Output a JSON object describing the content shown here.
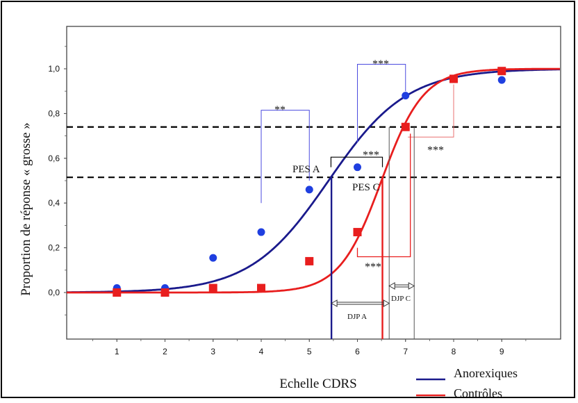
{
  "chart_data": {
    "type": "scatter",
    "xlabel": "Echelle CDRS",
    "ylabel": "Proportion de réponse « grosse »",
    "xlim": [
      0,
      10
    ],
    "ylim": [
      -0.2,
      1.2
    ],
    "x_ticks": [
      1,
      2,
      3,
      4,
      5,
      6,
      7,
      8,
      9
    ],
    "x_tick_labels": [
      "1",
      "2",
      "3",
      "4",
      "5",
      "6",
      "7",
      "8",
      "9"
    ],
    "y_ticks": [
      0.0,
      0.2,
      0.4,
      0.6,
      0.8,
      1.0
    ],
    "y_tick_labels": [
      "0,0",
      "0,2",
      "0,4",
      "0,6",
      "0,8",
      "1,0"
    ],
    "legend_position": "bottom-right",
    "series": [
      {
        "name": "Anorexiques",
        "color": "#1a1a8c",
        "marker": "circle",
        "marker_color": "#1f3fe0",
        "x": [
          1,
          2,
          3,
          4,
          5,
          6,
          7,
          8,
          9
        ],
        "y": [
          0.02,
          0.02,
          0.155,
          0.27,
          0.46,
          0.56,
          0.88,
          0.955,
          0.95
        ],
        "fit": {
          "midpoint": 5.4,
          "slope": 1.23
        }
      },
      {
        "name": "Contrôles",
        "color": "#e81e1e",
        "marker": "square",
        "marker_color": "#e81e1e",
        "x": [
          1,
          2,
          3,
          4,
          5,
          6,
          7,
          8,
          9
        ],
        "y": [
          0.0,
          0.0,
          0.02,
          0.02,
          0.14,
          0.27,
          0.74,
          0.955,
          0.99
        ],
        "fit": {
          "midpoint": 6.5,
          "slope": 2.3
        }
      }
    ],
    "reference_lines": [
      0.74,
      0.515
    ],
    "annotations": {
      "pes_a": "PES A",
      "pes_c": "PES C",
      "djp_a": "DJP A",
      "djp_c": "DJP C",
      "sig_2": "**",
      "sig_3": "***"
    }
  }
}
